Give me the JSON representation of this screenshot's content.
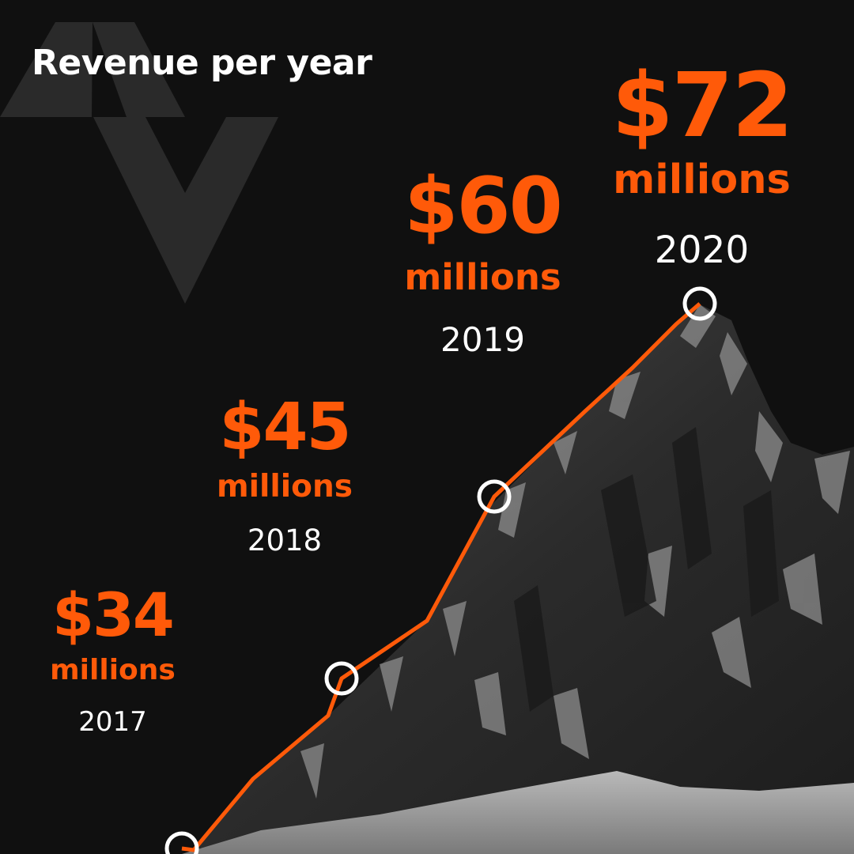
{
  "title": "Revenue per year",
  "colors": {
    "background": "#101010",
    "accent": "#ff5a09",
    "text": "#ffffff",
    "logo": "#2a2a2a"
  },
  "logo_icon": "chevron-triangle-logo",
  "background_image": "snowy-mountain-peak",
  "chart_data": {
    "type": "line",
    "title": "Revenue per year",
    "xlabel": "",
    "ylabel": "",
    "grid": false,
    "legend": "none",
    "categories": [
      "2017",
      "2018",
      "2019",
      "2020"
    ],
    "values": [
      34,
      45,
      60,
      72
    ],
    "ylim": [
      30,
      72
    ],
    "labels": [
      {
        "value": "$34",
        "unit": "millions",
        "year": "2017"
      },
      {
        "value": "$45",
        "unit": "millions",
        "year": "2018"
      },
      {
        "value": "$60",
        "unit": "millions",
        "year": "2019"
      },
      {
        "value": "$72",
        "unit": "millions",
        "year": "2020"
      }
    ]
  }
}
